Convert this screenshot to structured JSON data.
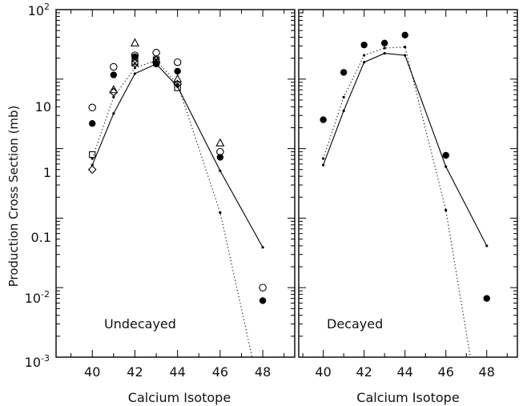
{
  "figure": {
    "ylabel": "Production Cross Section (mb)",
    "ytick_labels": {
      "top": {
        "base": "10",
        "exp": "2"
      },
      "ten": "10",
      "one": "1",
      "tenth": "0.1",
      "hundredth": {
        "base": "10",
        "exp": "-2"
      },
      "bottom": {
        "base": "10",
        "exp": "-3"
      }
    }
  },
  "chart_data": [
    {
      "type": "scatter",
      "panel_label": "Undecayed",
      "xlabel": "Calcium Isotope",
      "ylabel": "Production Cross Section (mb)",
      "yscale": "log",
      "xlim": [
        38.3,
        49.5
      ],
      "ylim": [
        0.001,
        100
      ],
      "xticks": [
        "40",
        "42",
        "44",
        "46",
        "48"
      ],
      "series": [
        {
          "style": "solid-line",
          "x": [
            40,
            41,
            42,
            43,
            44,
            46,
            48
          ],
          "y": [
            0.58,
            3.2,
            12,
            16.5,
            7.8,
            0.48,
            0.038
          ]
        },
        {
          "style": "dotted-line",
          "x": [
            40,
            41,
            42,
            43,
            44,
            46,
            47.5
          ],
          "y": [
            0.72,
            5.5,
            14.5,
            18.5,
            8.5,
            0.12,
            0.001
          ]
        },
        {
          "style": "open-circle",
          "x": [
            40,
            41,
            42,
            43,
            44,
            46,
            48
          ],
          "y": [
            3.9,
            15,
            22,
            24,
            17.5,
            0.9,
            0.01
          ]
        },
        {
          "style": "filled-circle",
          "x": [
            40,
            41,
            42,
            43,
            44,
            46,
            48
          ],
          "y": [
            2.3,
            11.5,
            21,
            16.5,
            13,
            0.75,
            0.0065
          ]
        },
        {
          "style": "open-triangle",
          "x": [
            41,
            42,
            43,
            44,
            46
          ],
          "y": [
            7,
            33,
            19,
            10,
            1.2
          ]
        },
        {
          "style": "open-square",
          "x": [
            40,
            42,
            43,
            44
          ],
          "y": [
            0.82,
            18,
            17.5,
            7.5
          ]
        },
        {
          "style": "open-diamond",
          "x": [
            40,
            41,
            44
          ],
          "y": [
            0.5,
            6.5,
            8.5
          ]
        },
        {
          "style": "crossed-square",
          "x": [
            42,
            43
          ],
          "y": [
            17,
            19
          ]
        }
      ]
    },
    {
      "type": "scatter",
      "panel_label": "Decayed",
      "xlabel": "Calcium Isotope",
      "ylabel": "Production Cross Section (mb)",
      "yscale": "log",
      "xlim": [
        38.8,
        49.5
      ],
      "ylim": [
        0.001,
        100
      ],
      "xticks": [
        "40",
        "42",
        "44",
        "46",
        "48"
      ],
      "series": [
        {
          "style": "solid-line",
          "x": [
            40,
            41,
            42,
            43,
            44,
            46,
            48
          ],
          "y": [
            0.58,
            3.5,
            17.5,
            23.5,
            22,
            0.55,
            0.04
          ]
        },
        {
          "style": "dotted-line",
          "x": [
            40,
            41,
            42,
            43,
            44,
            46,
            47.2
          ],
          "y": [
            0.72,
            5.5,
            22,
            28,
            29,
            0.13,
            0.001
          ]
        },
        {
          "style": "filled-circle",
          "x": [
            40,
            41,
            42,
            43,
            44,
            46,
            48
          ],
          "y": [
            2.6,
            12.5,
            31,
            33,
            43,
            0.8,
            0.007
          ]
        }
      ]
    }
  ]
}
